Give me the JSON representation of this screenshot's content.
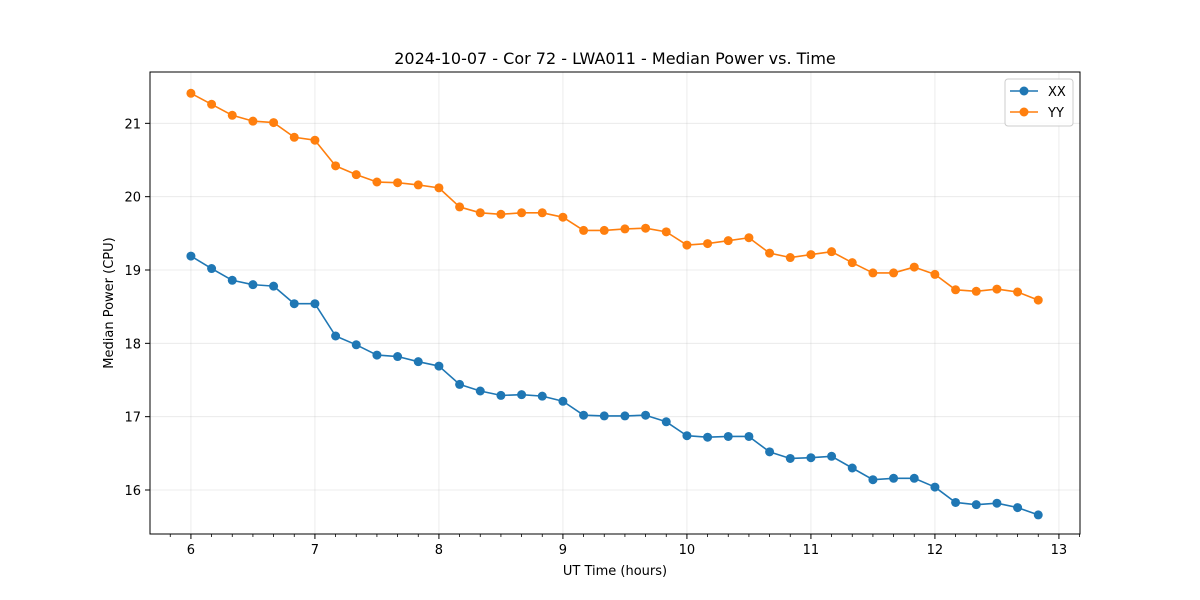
{
  "chart_data": {
    "type": "line",
    "title": "2024-10-07 - Cor 72 - LWA011 - Median Power vs. Time",
    "xlabel": "UT Time (hours)",
    "ylabel": "Median Power (CPU)",
    "xlim": [
      5.67,
      13.17
    ],
    "ylim": [
      15.4,
      21.7
    ],
    "xticks": [
      6,
      7,
      8,
      9,
      10,
      11,
      12,
      13
    ],
    "xtick_labels": [
      "6",
      "7",
      "8",
      "9",
      "10",
      "11",
      "12",
      "13"
    ],
    "yticks": [
      16,
      17,
      18,
      19,
      20,
      21
    ],
    "ytick_labels": [
      "16",
      "17",
      "18",
      "19",
      "20",
      "21"
    ],
    "grid": true,
    "legend_position": "top-right",
    "x": [
      6.0,
      6.1667,
      6.3333,
      6.5,
      6.6667,
      6.8333,
      7.0,
      7.1667,
      7.3333,
      7.5,
      7.6667,
      7.8333,
      8.0,
      8.1667,
      8.3333,
      8.5,
      8.6667,
      8.8333,
      9.0,
      9.1667,
      9.3333,
      9.5,
      9.6667,
      9.8333,
      10.0,
      10.1667,
      10.3333,
      10.5,
      10.6667,
      10.8333,
      11.0,
      11.1667,
      11.3333,
      11.5,
      11.6667,
      11.8333,
      12.0,
      12.1667,
      12.3333,
      12.5,
      12.6667,
      12.8333
    ],
    "series": [
      {
        "name": "XX",
        "color": "#1f77b4",
        "values": [
          19.19,
          19.02,
          18.86,
          18.8,
          18.78,
          18.54,
          18.54,
          18.1,
          17.98,
          17.84,
          17.82,
          17.75,
          17.69,
          17.44,
          17.35,
          17.29,
          17.3,
          17.28,
          17.21,
          17.02,
          17.01,
          17.01,
          17.02,
          16.93,
          16.74,
          16.72,
          16.73,
          16.73,
          16.52,
          16.43,
          16.44,
          16.46,
          16.3,
          16.14,
          16.16,
          16.16,
          16.04,
          15.83,
          15.8,
          15.82,
          15.76,
          15.66
        ]
      },
      {
        "name": "YY",
        "color": "#ff7f0e",
        "values": [
          21.41,
          21.26,
          21.11,
          21.03,
          21.01,
          20.81,
          20.77,
          20.42,
          20.3,
          20.2,
          20.19,
          20.16,
          20.12,
          19.86,
          19.78,
          19.76,
          19.78,
          19.78,
          19.72,
          19.54,
          19.54,
          19.56,
          19.57,
          19.52,
          19.34,
          19.36,
          19.4,
          19.44,
          19.23,
          19.17,
          19.21,
          19.25,
          19.1,
          18.96,
          18.96,
          19.04,
          18.94,
          18.73,
          18.71,
          18.74,
          18.7,
          18.59
        ]
      }
    ]
  }
}
